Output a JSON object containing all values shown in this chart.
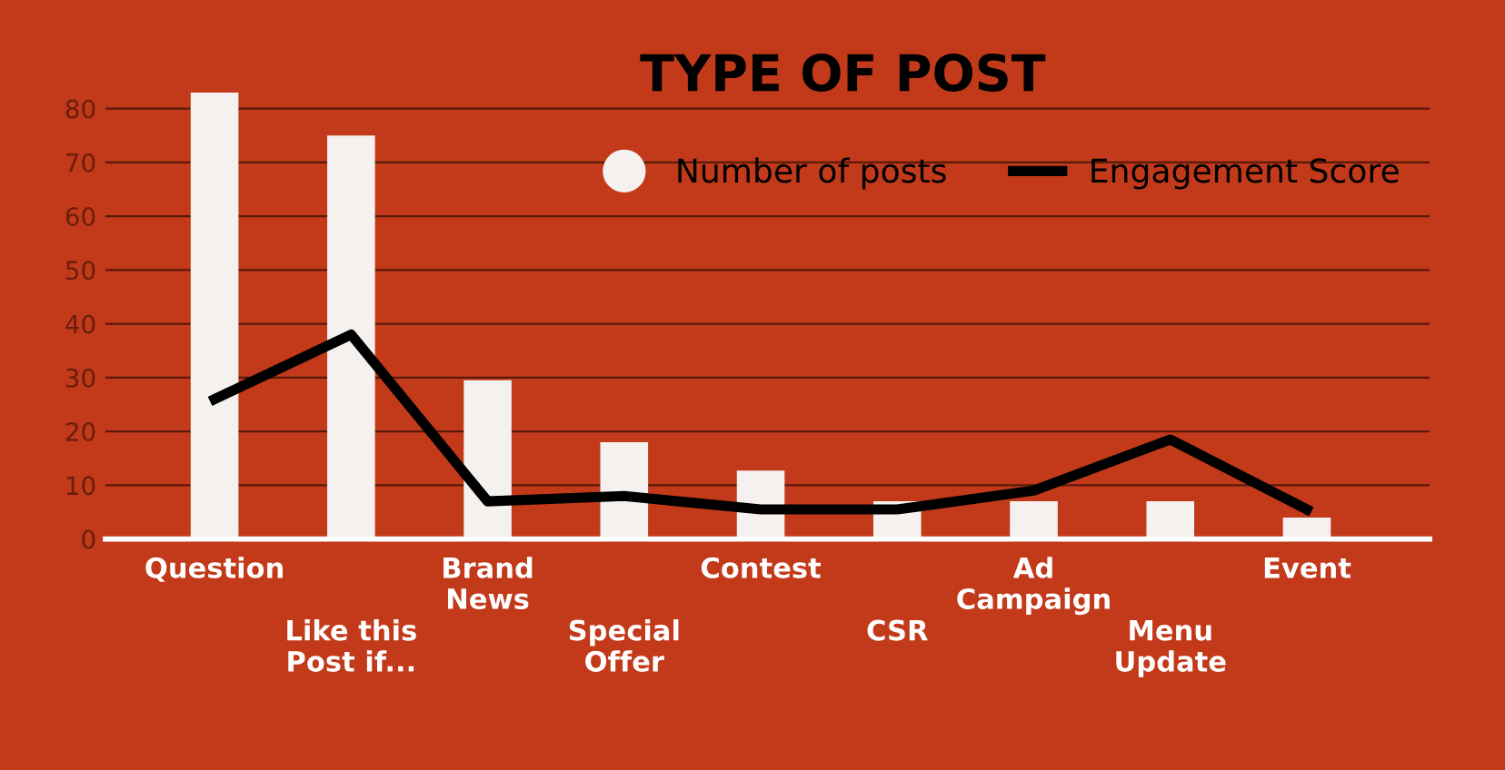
{
  "chart_data": {
    "type": "bar",
    "title": "TYPE OF POST",
    "categories": [
      "Question",
      "Like this Post if...",
      "Brand News",
      "Special Offer",
      "Contest",
      "CSR",
      "Ad Campaign",
      "Menu Update",
      "Event"
    ],
    "series": [
      {
        "name": "Number of posts",
        "color": "#f4f1ee",
        "values": [
          83,
          75,
          29.5,
          18,
          12.7,
          7,
          7,
          7,
          4
        ]
      },
      {
        "name": "Engagement Score",
        "type": "line",
        "color": "#000000",
        "values": [
          26,
          38,
          7,
          8,
          5.5,
          5.5,
          9,
          18.5,
          5.5
        ]
      }
    ],
    "ylim": [
      0,
      83
    ],
    "yticks": [
      0,
      10,
      20,
      30,
      40,
      50,
      60,
      70,
      80
    ],
    "grid": "y",
    "legend": "top right",
    "marker": "none",
    "line_style": "solid"
  }
}
